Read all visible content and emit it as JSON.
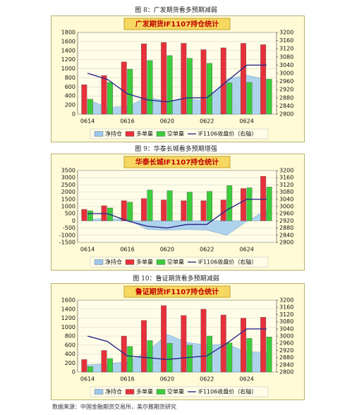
{
  "chart_data": [
    {
      "type": "bar",
      "caption": "图 8：广发期货看多预期减弱",
      "title": "广发期货IF1107持仓统计",
      "categories": [
        "0614",
        null,
        "0616",
        null,
        "0620",
        null,
        "0622",
        null,
        "0624",
        null
      ],
      "series": [
        {
          "name": "净持仓",
          "kind": "area",
          "color": "#9cc8ec",
          "values": [
            320,
            150,
            170,
            370,
            290,
            330,
            300,
            770,
            860,
            760
          ]
        },
        {
          "name": "多单量",
          "kind": "bar",
          "color": "#e8303a",
          "values": [
            650,
            850,
            1150,
            1550,
            1580,
            1560,
            1420,
            1460,
            1560,
            1530
          ]
        },
        {
          "name": "空单量",
          "kind": "bar",
          "color": "#3ccc3c",
          "values": [
            330,
            700,
            990,
            1180,
            1290,
            1230,
            1120,
            690,
            700,
            770
          ]
        },
        {
          "name": "IF1106收盘价（右轴）",
          "kind": "line",
          "axis": "y2",
          "color": "#2a2a8a",
          "values": [
            3000,
            2970,
            2900,
            2870,
            2860,
            2880,
            2880,
            2960,
            3040,
            3040
          ]
        }
      ],
      "ylim": [
        0,
        1800
      ],
      "yticks": [
        0,
        200,
        400,
        600,
        800,
        1000,
        1200,
        1400,
        1600,
        1800
      ],
      "y2lim": [
        2800,
        3200
      ],
      "y2ticks": [
        2800,
        2840,
        2880,
        2920,
        2960,
        3000,
        3040,
        3080,
        3120,
        3160,
        3200
      ],
      "grid": true
    },
    {
      "type": "bar",
      "caption": "图 9：华泰长城看多预期增强",
      "title": "华泰长城IF1107持仓统计",
      "categories": [
        "0614",
        null,
        "0616",
        null,
        "0620",
        null,
        "0622",
        null,
        "0624",
        null
      ],
      "series": [
        {
          "name": "净持仓",
          "kind": "area",
          "color": "#9cc8ec",
          "values": [
            100,
            150,
            100,
            -600,
            -650,
            -600,
            -650,
            -1000,
            -50,
            750
          ]
        },
        {
          "name": "多单量",
          "kind": "bar",
          "color": "#e8303a",
          "values": [
            800,
            1050,
            1400,
            1550,
            1450,
            1400,
            1400,
            1450,
            2250,
            3100
          ]
        },
        {
          "name": "空单量",
          "kind": "bar",
          "color": "#3ccc3c",
          "values": [
            700,
            900,
            1300,
            2150,
            2100,
            2000,
            2050,
            2450,
            2300,
            2350
          ]
        },
        {
          "name": "IF1106收盘价（右轴）",
          "kind": "line",
          "axis": "y2",
          "color": "#2a2a8a",
          "values": [
            2960,
            2960,
            2920,
            2890,
            2880,
            2900,
            2900,
            2980,
            3040,
            3040
          ]
        }
      ],
      "ylim": [
        -1500,
        3500
      ],
      "yticks": [
        -1500,
        -1000,
        -500,
        0,
        500,
        1000,
        1500,
        2000,
        2500,
        3000,
        3500
      ],
      "y2lim": [
        2800,
        3200
      ],
      "y2ticks": [
        2800,
        2840,
        2880,
        2920,
        2960,
        3000,
        3040,
        3080,
        3120,
        3160,
        3200
      ],
      "grid": true
    },
    {
      "type": "bar",
      "caption": "图 10：鲁证期货看多预期减弱",
      "title": "鲁证期货IF1107持仓统计",
      "categories": [
        "0614",
        null,
        "0616",
        null,
        "0620",
        null,
        "0622",
        null,
        "0624",
        null
      ],
      "series": [
        {
          "name": "净持仓",
          "kind": "area",
          "color": "#9cc8ec",
          "values": [
            160,
            180,
            230,
            450,
            840,
            660,
            600,
            620,
            450,
            440
          ]
        },
        {
          "name": "多单量",
          "kind": "bar",
          "color": "#e8303a",
          "values": [
            280,
            480,
            800,
            1150,
            1480,
            1260,
            1400,
            1270,
            1200,
            1220
          ]
        },
        {
          "name": "空单量",
          "kind": "bar",
          "color": "#3ccc3c",
          "values": [
            120,
            300,
            570,
            700,
            640,
            600,
            800,
            650,
            750,
            780
          ]
        },
        {
          "name": "IF1106收盘价（右轴）",
          "kind": "line",
          "axis": "y2",
          "color": "#2a2a8a",
          "values": [
            3000,
            2970,
            2890,
            2880,
            2870,
            2880,
            2890,
            2960,
            3040,
            3040
          ]
        }
      ],
      "ylim": [
        0,
        1600
      ],
      "yticks": [
        0,
        200,
        400,
        600,
        800,
        1000,
        1200,
        1400,
        1600
      ],
      "y2lim": [
        2800,
        3200
      ],
      "y2ticks": [
        2800,
        2840,
        2880,
        2920,
        2960,
        3000,
        3040,
        3080,
        3120,
        3160,
        3200
      ],
      "grid": true
    }
  ],
  "source": "数据来源：中国金融期货交易所，美尔雅期货研究"
}
